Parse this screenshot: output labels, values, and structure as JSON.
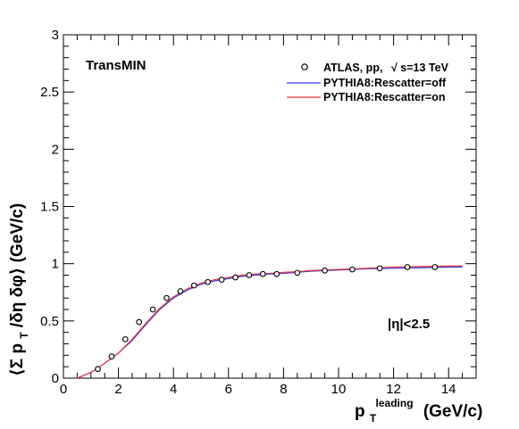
{
  "chart_data": {
    "type": "line",
    "panel_label": "TransMIN",
    "annotation": "|η|<2.5",
    "xlabel": {
      "main": "p",
      "sub": "T",
      "sup": "leading",
      "unit": "(GeV/c)"
    },
    "ylabel": {
      "prefix": "⟨Σ p",
      "sub": "T",
      "suffix": "/δη  δφ⟩ (GeV/c)"
    },
    "xlim": [
      0,
      15
    ],
    "ylim": [
      0,
      3
    ],
    "x_ticks": [
      0,
      2,
      4,
      6,
      8,
      10,
      12,
      14
    ],
    "y_ticks": [
      0,
      0.5,
      1,
      1.5,
      2,
      2.5,
      3
    ],
    "y_tick_labels": [
      "0",
      "0.5",
      "1",
      "1.5",
      "2",
      "2.5",
      "3"
    ],
    "grid": false,
    "legend_position": "top-right",
    "series": [
      {
        "name": "ATLAS, pp, √s=13 TeV",
        "legend_label": "ATLAS, pp,",
        "legend_sqrt": "s=13 TeV",
        "kind": "markers",
        "marker": "open-circle",
        "color": "#000000",
        "x": [
          1.25,
          1.75,
          2.25,
          2.75,
          3.25,
          3.75,
          4.25,
          4.75,
          5.25,
          5.75,
          6.25,
          6.75,
          7.25,
          7.75,
          8.5,
          9.5,
          10.5,
          11.5,
          12.5,
          13.5
        ],
        "y": [
          0.08,
          0.19,
          0.34,
          0.49,
          0.6,
          0.7,
          0.76,
          0.81,
          0.84,
          0.86,
          0.88,
          0.9,
          0.91,
          0.91,
          0.92,
          0.94,
          0.95,
          0.96,
          0.97,
          0.97
        ]
      },
      {
        "name": "PYTHIA8:Rescatter=off",
        "kind": "line",
        "color": "#3a3ae8",
        "x": [
          0.5,
          1.0,
          1.5,
          2.0,
          2.5,
          3.0,
          3.5,
          4.0,
          4.5,
          5.0,
          5.5,
          6.0,
          6.5,
          7.0,
          7.5,
          8.0,
          8.5,
          9.0,
          9.5,
          10.0,
          11.0,
          12.0,
          13.0,
          14.0,
          14.5
        ],
        "y": [
          0.0,
          0.05,
          0.13,
          0.22,
          0.33,
          0.47,
          0.6,
          0.7,
          0.77,
          0.82,
          0.85,
          0.87,
          0.89,
          0.9,
          0.91,
          0.915,
          0.925,
          0.935,
          0.94,
          0.945,
          0.955,
          0.96,
          0.965,
          0.97,
          0.97
        ]
      },
      {
        "name": "PYTHIA8:Rescatter=on",
        "kind": "line",
        "color": "#e8333a",
        "x": [
          0.5,
          1.0,
          1.5,
          2.0,
          2.5,
          3.0,
          3.5,
          4.0,
          4.5,
          5.0,
          5.5,
          6.0,
          6.5,
          7.0,
          7.5,
          8.0,
          8.5,
          9.0,
          9.5,
          10.0,
          11.0,
          12.0,
          13.0,
          14.0,
          14.5
        ],
        "y": [
          0.0,
          0.05,
          0.13,
          0.22,
          0.34,
          0.48,
          0.61,
          0.71,
          0.78,
          0.83,
          0.86,
          0.88,
          0.9,
          0.91,
          0.915,
          0.925,
          0.93,
          0.94,
          0.945,
          0.95,
          0.96,
          0.97,
          0.975,
          0.98,
          0.98
        ]
      }
    ]
  }
}
